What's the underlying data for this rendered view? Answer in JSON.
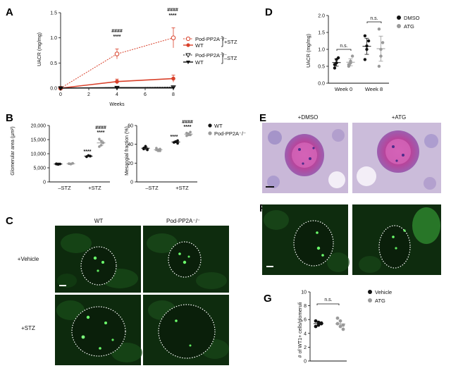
{
  "panels": {
    "A": "A",
    "B": "B",
    "C": "C",
    "D": "D",
    "E": "E",
    "F": "F",
    "G": "G"
  },
  "panelA": {
    "ylabel": "UACR (mg/mg)",
    "xlabel": "Weeks",
    "yticks": [
      "0.0",
      "0.5",
      "1.0",
      "1.5"
    ],
    "xticks": [
      "0",
      "2",
      "4",
      "6",
      "8"
    ],
    "sig_w4": [
      "####",
      "****"
    ],
    "sig_w8": [
      "####",
      "****"
    ],
    "legend": [
      "Pod-PP2A⁻/⁻",
      "WT",
      "Pod-PP2A⁻/⁻",
      "WT"
    ],
    "group_stz": "+STZ",
    "group_nostz": "–STZ",
    "colors": {
      "stz": "#d9412b",
      "nostz": "#111111"
    }
  },
  "panelB1": {
    "ylabel": "Glomerular area (µm²)",
    "yticks": [
      "0",
      "5,000",
      "10,000",
      "15,000",
      "20,000"
    ],
    "xticks": [
      "–STZ",
      "+STZ"
    ],
    "sig_wt": "****",
    "sig_ko": [
      "####",
      "****"
    ]
  },
  "panelB2": {
    "ylabel": "Mesangial fraction (%)",
    "yticks": [
      "0",
      "20",
      "40",
      "60"
    ],
    "xticks": [
      "–STZ",
      "+STZ"
    ],
    "sig_wt": "****",
    "sig_ko": [
      "####",
      "****"
    ],
    "legend": [
      "WT",
      "Pod-PP2A⁻/⁻"
    ]
  },
  "panelC": {
    "col_labels": [
      "WT",
      "Pod-PP2A⁻/⁻"
    ],
    "row_labels": [
      "+Vehicle",
      "+STZ"
    ]
  },
  "panelD": {
    "ylabel": "UACR (mg/mg)",
    "yticks": [
      "0.0",
      "0.5",
      "1.0",
      "1.5",
      "2.0"
    ],
    "xticks": [
      "Week 0",
      "Week 8"
    ],
    "sig": [
      "n.s.",
      "n.s."
    ],
    "legend": [
      "DMSO",
      "ATG"
    ]
  },
  "panelE": {
    "col_labels": [
      "+DMSO",
      "+ATG"
    ]
  },
  "panelG": {
    "ylabel": "# of WT1+ cells/glomeruli",
    "yticks": [
      "0",
      "2",
      "4",
      "6",
      "8",
      "10"
    ],
    "sig": "n.s.",
    "legend": [
      "Vehicle",
      "ATG"
    ]
  },
  "chart_data": [
    {
      "type": "line",
      "panel": "A",
      "x": [
        0,
        4,
        8
      ],
      "series": [
        {
          "name": "Pod-PP2A⁻/⁻ +STZ",
          "values": [
            0.0,
            0.68,
            1.0
          ],
          "errors": [
            0.02,
            0.1,
            0.2
          ]
        },
        {
          "name": "WT +STZ",
          "values": [
            0.0,
            0.13,
            0.19
          ],
          "errors": [
            0.02,
            0.05,
            0.07
          ]
        },
        {
          "name": "Pod-PP2A⁻/⁻ –STZ",
          "values": [
            0.0,
            0.01,
            0.02
          ],
          "errors": [
            0.01,
            0.01,
            0.01
          ]
        },
        {
          "name": "WT –STZ",
          "values": [
            0.0,
            0.01,
            0.01
          ],
          "errors": [
            0.01,
            0.01,
            0.01
          ]
        }
      ],
      "ylabel": "UACR (mg/mg)",
      "xlabel": "Weeks",
      "ylim": [
        0,
        1.5
      ],
      "xlim": [
        0,
        8
      ]
    },
    {
      "type": "scatter",
      "panel": "B-left",
      "categories": [
        "–STZ",
        "+STZ"
      ],
      "series": [
        {
          "name": "WT",
          "values": [
            [
              6300,
              6400,
              6350,
              6450,
              6200,
              6350
            ],
            [
              9000,
              9400,
              9200,
              8900,
              9300,
              9100
            ]
          ]
        },
        {
          "name": "Pod-PP2A⁻/⁻",
          "values": [
            [
              6500,
              6400,
              6600,
              6450,
              6300,
              6550
            ],
            [
              12500,
              14500,
              13800,
              15200,
              13000,
              14000
            ]
          ]
        }
      ],
      "ylabel": "Glomerular area (µm²)",
      "ylim": [
        0,
        20000
      ]
    },
    {
      "type": "scatter",
      "panel": "B-right",
      "categories": [
        "–STZ",
        "+STZ"
      ],
      "series": [
        {
          "name": "WT",
          "values": [
            [
              35,
              37,
              34,
              36,
              38,
              35
            ],
            [
              42,
              43,
              44,
              42,
              43,
              41
            ]
          ]
        },
        {
          "name": "Pod-PP2A⁻/⁻",
          "values": [
            [
              34,
              33,
              35,
              36,
              34,
              33
            ],
            [
              49,
              51,
              50,
              52,
              50,
              53
            ]
          ]
        }
      ],
      "ylabel": "Mesangial fraction (%)",
      "ylim": [
        0,
        60
      ]
    },
    {
      "type": "scatter",
      "panel": "D",
      "categories": [
        "Week 0",
        "Week 8"
      ],
      "series": [
        {
          "name": "DMSO",
          "values": [
            [
              0.55,
              0.7,
              0.75,
              0.45,
              0.6
            ],
            [
              0.7,
              1.0,
              1.25,
              1.4,
              1.1
            ]
          ]
        },
        {
          "name": "ATG",
          "values": [
            [
              0.5,
              0.65,
              0.8,
              0.55,
              0.6
            ],
            [
              0.5,
              0.8,
              1.2,
              1.6,
              1.0
            ]
          ]
        }
      ],
      "ylabel": "UACR (mg/mg)",
      "ylim": [
        0,
        2.0
      ]
    },
    {
      "type": "scatter",
      "panel": "G",
      "categories": [
        "Vehicle",
        "ATG"
      ],
      "series": [
        {
          "name": "Vehicle",
          "values": [
            5.8,
            5.2,
            5.5,
            5.0,
            5.6,
            5.4
          ]
        },
        {
          "name": "ATG",
          "values": [
            6.2,
            5.0,
            4.6,
            5.4,
            5.8,
            5.2
          ]
        }
      ],
      "ylabel": "# of WT1+ cells/glomeruli",
      "ylim": [
        0,
        10
      ]
    }
  ]
}
